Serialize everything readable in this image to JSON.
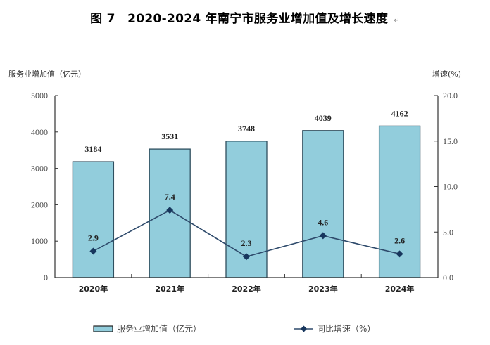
{
  "chart_data": {
    "type": "bar",
    "title": "图 7　2020-2024 年南宁市服务业增加值及增长速度",
    "return_mark": "↵",
    "categories": [
      "2020年",
      "2021年",
      "2022年",
      "2023年",
      "2024年"
    ],
    "series": [
      {
        "name": "服务业增加值（亿元）",
        "type": "bar",
        "axis": "left",
        "values": [
          3184,
          3531,
          3748,
          4039,
          4162
        ],
        "labels": [
          "3184",
          "3531",
          "3748",
          "4039",
          "4162"
        ],
        "color": "#92CDDC",
        "edge_color": "#2F4F5F"
      },
      {
        "name": "同比增速（%）",
        "type": "line",
        "axis": "right",
        "values": [
          2.9,
          7.4,
          2.3,
          4.6,
          2.6
        ],
        "labels": [
          "2.9",
          "7.4",
          "2.3",
          "4.6",
          "2.6"
        ],
        "color": "#17365D",
        "marker": "diamond"
      }
    ],
    "ylabel_left": "服务业增加值（亿元）",
    "ylabel_right": "增速(%)",
    "ylim_left": [
      0,
      5000
    ],
    "ylim_right": [
      0,
      20
    ],
    "yticks_left": [
      "0",
      "1000",
      "2000",
      "3000",
      "4000",
      "5000"
    ],
    "yticks_right": [
      "0.0",
      "5.0",
      "10.0",
      "15.0",
      "20.0"
    ],
    "grid": false,
    "legend_position": "bottom"
  }
}
